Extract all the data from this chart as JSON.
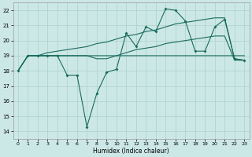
{
  "xlabel": "Humidex (Indice chaleur)",
  "bg_color": "#cce8e6",
  "grid_color": "#aad0cc",
  "line_color": "#1a6b5e",
  "xlim": [
    -0.5,
    23.5
  ],
  "ylim": [
    13.5,
    22.5
  ],
  "xticks": [
    0,
    1,
    2,
    3,
    4,
    5,
    6,
    7,
    8,
    9,
    10,
    11,
    12,
    13,
    14,
    15,
    16,
    17,
    18,
    19,
    20,
    21,
    22,
    23
  ],
  "yticks": [
    14,
    15,
    16,
    17,
    18,
    19,
    20,
    21,
    22
  ],
  "line_min_x": [
    0,
    1,
    2,
    3,
    4,
    5,
    6,
    7,
    8,
    9,
    10,
    11,
    12,
    13,
    14,
    15,
    16,
    17,
    18,
    19,
    20,
    21,
    22,
    23
  ],
  "line_min_y": [
    18.0,
    19.0,
    19.0,
    19.0,
    19.0,
    19.0,
    19.0,
    19.0,
    19.0,
    19.0,
    19.0,
    19.0,
    19.0,
    19.0,
    19.0,
    19.0,
    19.0,
    19.0,
    19.0,
    19.0,
    19.0,
    19.0,
    19.0,
    19.0
  ],
  "line_max_x": [
    0,
    1,
    2,
    3,
    4,
    5,
    6,
    7,
    8,
    9,
    10,
    11,
    12,
    13,
    14,
    15,
    16,
    17,
    18,
    19,
    20,
    21,
    22,
    23
  ],
  "line_max_y": [
    18.0,
    19.0,
    19.0,
    19.2,
    19.3,
    19.4,
    19.5,
    19.6,
    19.8,
    19.9,
    20.1,
    20.3,
    20.4,
    20.6,
    20.7,
    20.9,
    21.1,
    21.2,
    21.3,
    21.4,
    21.5,
    21.5,
    18.8,
    18.7
  ],
  "line_main_x": [
    0,
    1,
    2,
    3,
    4,
    5,
    6,
    7,
    8,
    9,
    10,
    11,
    12,
    13,
    14,
    15,
    16,
    17,
    18,
    19,
    20,
    21,
    22,
    23
  ],
  "line_main_y": [
    18.0,
    19.0,
    19.0,
    19.0,
    19.0,
    17.7,
    17.7,
    14.3,
    16.5,
    17.9,
    18.1,
    20.5,
    19.6,
    20.9,
    20.6,
    22.1,
    22.0,
    21.3,
    19.3,
    19.3,
    20.9,
    21.4,
    18.8,
    18.7
  ],
  "line_mid_x": [
    0,
    1,
    2,
    3,
    4,
    5,
    6,
    7,
    8,
    9,
    10,
    11,
    12,
    13,
    14,
    15,
    16,
    17,
    18,
    19,
    20,
    21,
    22,
    23
  ],
  "line_mid_y": [
    18.0,
    19.0,
    19.0,
    19.0,
    19.0,
    19.0,
    19.0,
    19.0,
    18.8,
    18.8,
    19.0,
    19.2,
    19.4,
    19.5,
    19.6,
    19.8,
    19.9,
    20.0,
    20.1,
    20.2,
    20.3,
    20.3,
    18.7,
    18.7
  ]
}
